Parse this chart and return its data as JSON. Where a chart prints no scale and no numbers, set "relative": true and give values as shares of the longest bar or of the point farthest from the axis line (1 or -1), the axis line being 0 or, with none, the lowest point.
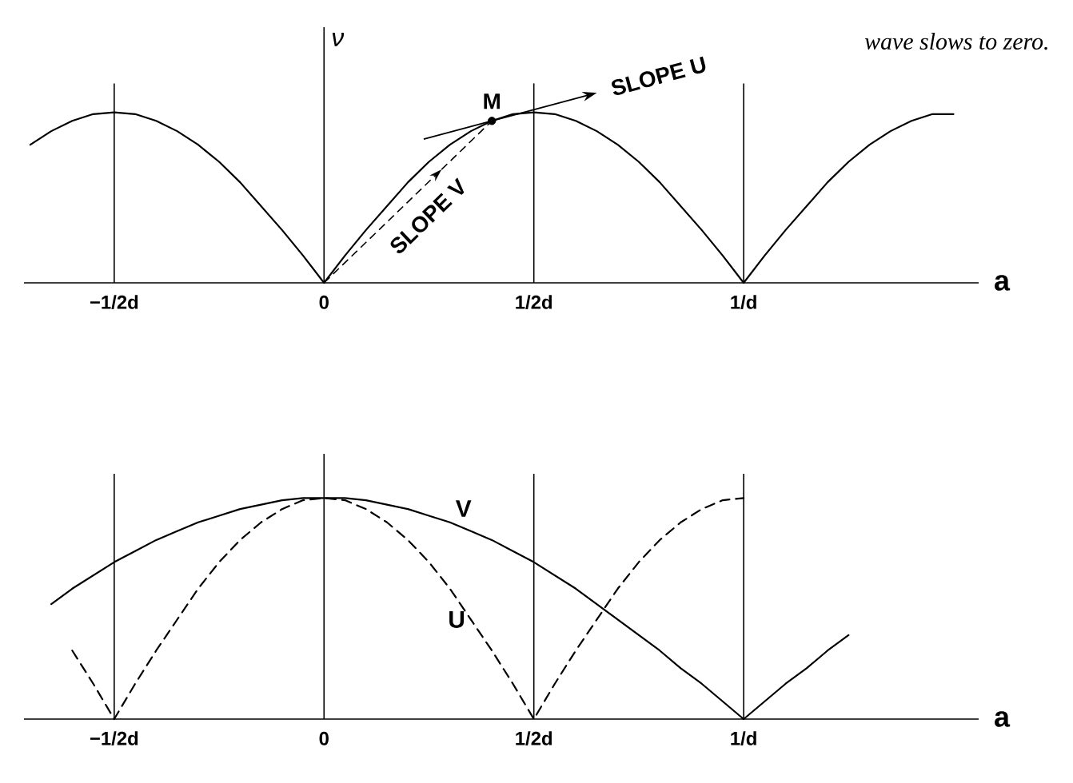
{
  "chart_data": [
    {
      "type": "line",
      "relative": true,
      "xlabel": "a",
      "ylabel": "ν",
      "categories": [
        null,
        null,
        null,
        null,
        "−1/2d",
        null,
        null,
        null,
        null,
        null,
        null,
        null,
        null,
        null,
        "0",
        null,
        null,
        null,
        null,
        null,
        null,
        null,
        null,
        null,
        "1/2d",
        null,
        null,
        null,
        null,
        null,
        null,
        null,
        null,
        null,
        "1/d",
        null,
        null,
        null,
        null,
        null,
        null,
        null,
        null,
        null,
        null
      ],
      "series": [
        {
          "color": "#000000",
          "values": [
            0.81,
            0.89,
            0.95,
            0.99,
            1,
            0.99,
            0.95,
            0.89,
            0.81,
            0.71,
            0.59,
            0.45,
            0.31,
            0.16,
            0,
            0.16,
            0.31,
            0.45,
            0.59,
            0.71,
            0.81,
            0.89,
            0.95,
            0.99,
            1,
            0.99,
            0.95,
            0.89,
            0.81,
            0.71,
            0.59,
            0.45,
            0.31,
            0.16,
            0,
            0.16,
            0.31,
            0.45,
            0.59,
            0.71,
            0.81,
            0.89,
            0.95,
            0.99,
            0.99
          ]
        },
        {
          "type": "scatter",
          "name": "M",
          "color": "#000000",
          "values": [
            null,
            null,
            null,
            null,
            null,
            null,
            null,
            null,
            null,
            null,
            null,
            null,
            null,
            null,
            null,
            null,
            null,
            null,
            null,
            null,
            null,
            null,
            0.95,
            null,
            null,
            null,
            null,
            null,
            null,
            null,
            null,
            null,
            null,
            null,
            null,
            null,
            null,
            null,
            null,
            null,
            null,
            null,
            null,
            null,
            null
          ]
        }
      ],
      "grid": "x",
      "annotations": [
        "SLOPE U",
        "SLOPE V",
        "wave slows to zero."
      ]
    },
    {
      "type": "line",
      "relative": true,
      "xlabel": "a",
      "categories": [
        null,
        null,
        null,
        null,
        "−1/2d",
        null,
        null,
        null,
        null,
        null,
        null,
        null,
        null,
        null,
        "0",
        null,
        null,
        null,
        null,
        null,
        null,
        null,
        null,
        null,
        "1/2d",
        null,
        null,
        null,
        null,
        null,
        null,
        null,
        null,
        null,
        "1/d",
        null,
        null,
        null,
        null,
        null,
        null,
        null,
        null,
        null,
        null
      ],
      "series": [
        {
          "name": "V",
          "color": "#000000",
          "line_style": "solid",
          "values": [
            null,
            0.52,
            0.59,
            0.65,
            0.71,
            0.76,
            0.81,
            0.85,
            0.89,
            0.92,
            0.95,
            0.97,
            0.99,
            1,
            1,
            1,
            0.99,
            0.97,
            0.95,
            0.92,
            0.89,
            0.85,
            0.81,
            0.76,
            0.71,
            0.65,
            0.59,
            0.52,
            0.45,
            0.38,
            0.31,
            0.23,
            0.16,
            0.08,
            0,
            0.08,
            0.16,
            0.23,
            0.31,
            0.38,
            null,
            null,
            null,
            null,
            null
          ]
        },
        {
          "name": "U",
          "color": "#000000",
          "line_style": "dashed",
          "values": [
            null,
            null,
            0.31,
            0.16,
            0,
            0.16,
            0.31,
            0.45,
            0.59,
            0.71,
            0.81,
            0.89,
            0.95,
            0.99,
            1,
            0.99,
            0.95,
            0.89,
            0.81,
            0.71,
            0.59,
            0.45,
            0.31,
            0.16,
            0,
            0.16,
            0.31,
            0.45,
            0.59,
            0.71,
            0.81,
            0.89,
            0.95,
            0.99,
            1,
            null,
            null,
            null,
            null,
            null,
            null,
            null,
            null,
            null,
            null
          ]
        }
      ],
      "grid": "x"
    }
  ]
}
